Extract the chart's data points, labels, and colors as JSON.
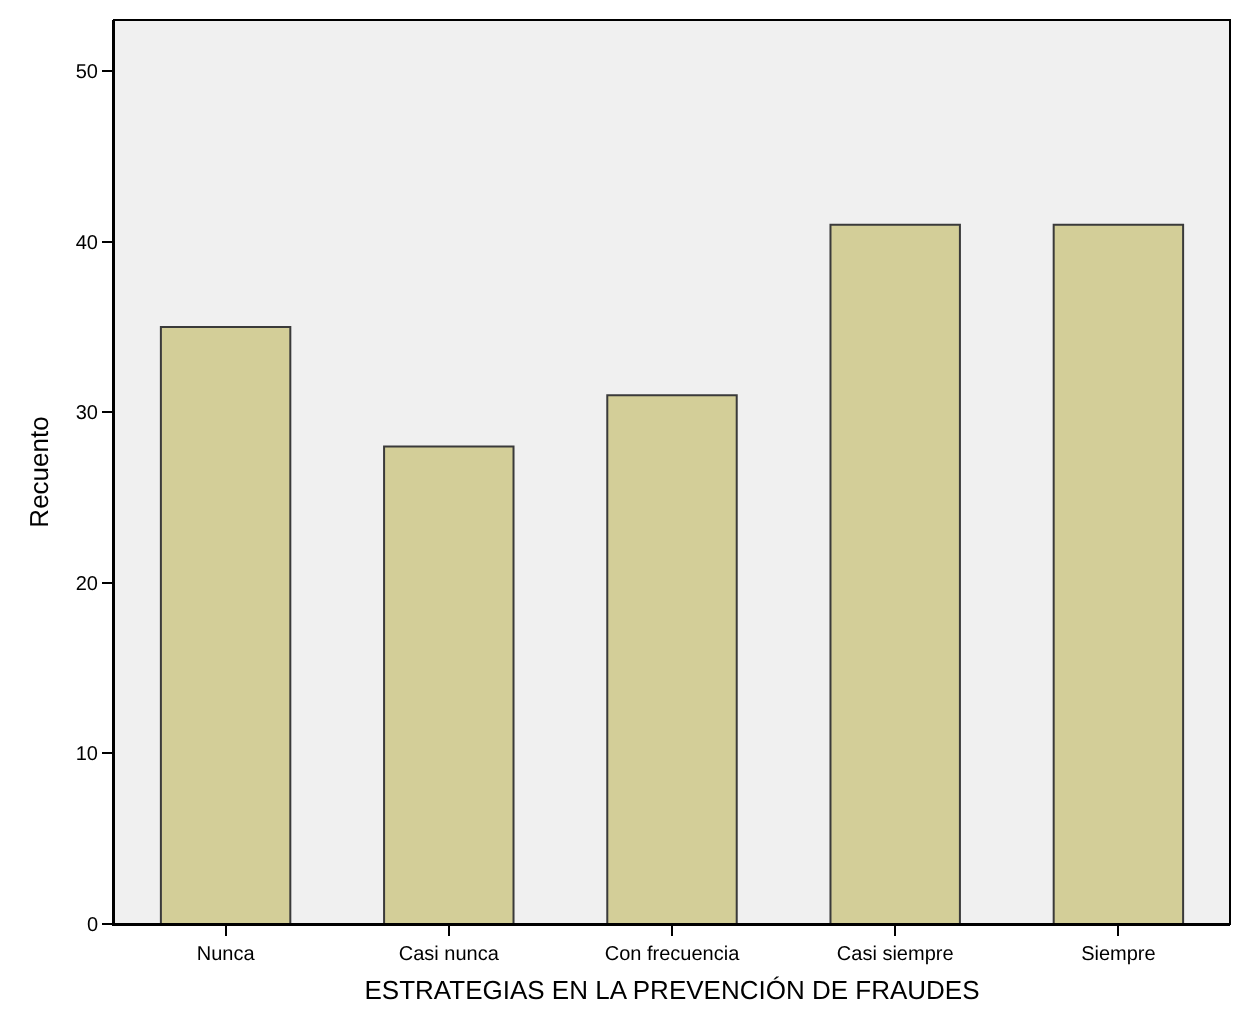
{
  "chart_data": {
    "type": "bar",
    "xlabel": "ESTRATEGIAS EN LA PREVENCIÓN DE FRAUDES",
    "ylabel": "Recuento",
    "categories": [
      "Nunca",
      "Casi nunca",
      "Con frecuencia",
      "Casi siempre",
      "Siempre"
    ],
    "values": [
      35,
      28,
      31,
      41,
      41
    ],
    "color": "#d3ce98",
    "ylim": [
      0,
      53
    ],
    "yticks": [
      0,
      10,
      20,
      30,
      40,
      50
    ],
    "grid": false
  }
}
